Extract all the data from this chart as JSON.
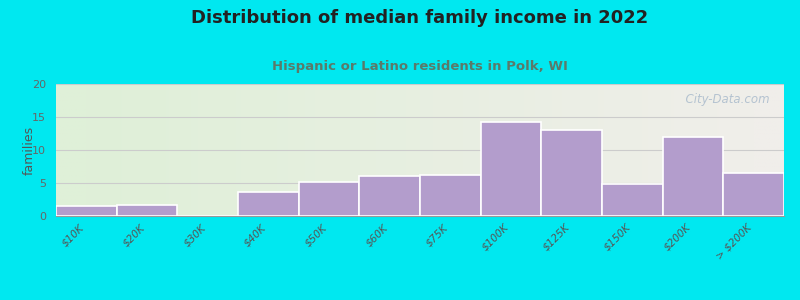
{
  "title": "Distribution of median family income in 2022",
  "subtitle": "Hispanic or Latino residents in Polk, WI",
  "categories": [
    "$10K",
    "$20K",
    "$30K",
    "$40K",
    "$50K",
    "$60K",
    "$75K",
    "$100K",
    "$125K",
    "$150K",
    "$200K",
    "> $200K"
  ],
  "values": [
    1.5,
    1.7,
    0,
    3.6,
    5.1,
    6.0,
    6.2,
    14.2,
    13.0,
    4.9,
    12.0,
    6.5
  ],
  "bar_color": "#b39dcc",
  "bar_edge_color": "#ffffff",
  "background_outer": "#00e8f0",
  "plot_bg_left": "#dff0d8",
  "plot_bg_right": "#f0eeea",
  "title_color": "#222222",
  "subtitle_color": "#5a7a6a",
  "ylabel": "families",
  "ylim": [
    0,
    20
  ],
  "yticks": [
    0,
    5,
    10,
    15,
    20
  ],
  "grid_color": "#cccccc",
  "watermark": "  City-Data.com"
}
